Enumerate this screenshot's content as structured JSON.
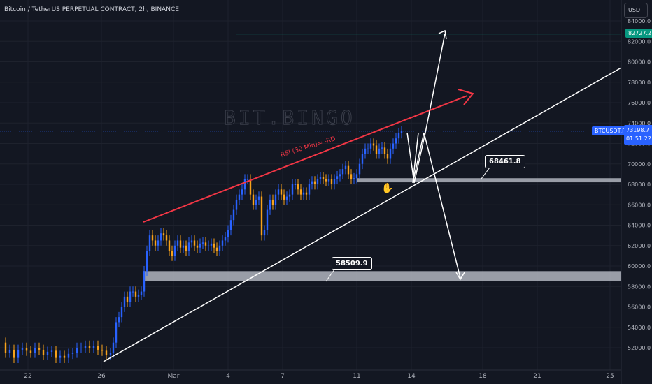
{
  "header": {
    "title": "Bitcoin / TetherUS PERPETUAL CONTRACT, 2h, BINANCE",
    "currency": "USDT"
  },
  "watermark": "BIT.BINGO",
  "annotations": {
    "rsi_label": "RSI (30 Min)= -RD",
    "hand_icon": "pointing-hand-icon"
  },
  "price_tags": {
    "green": "82727.2",
    "symbol": "BTCUSDT.P",
    "last": "73198.7",
    "countdown": "01:51:22"
  },
  "callouts": {
    "upper": "68461.8",
    "lower": "58509.9"
  },
  "colors": {
    "up": "#2962ff",
    "down": "#f7a21b",
    "trend_red": "#f23645",
    "support": "#b2b5be",
    "green_line": "#089981"
  },
  "chart_data": {
    "type": "candlestick",
    "title": "Bitcoin / TetherUS PERPETUAL CONTRACT, 2h, BINANCE",
    "ylim": [
      50000,
      85000
    ],
    "y_ticks": [
      "52000.0",
      "54000.0",
      "56000.0",
      "58000.0",
      "60000.0",
      "62000.0",
      "64000.0",
      "66000.0",
      "68000.0",
      "70000.0",
      "72000.0",
      "74000.0",
      "76000.0",
      "78000.0",
      "80000.0",
      "82000.0",
      "84000.0"
    ],
    "x_ticks": [
      "22",
      "26",
      "Mar",
      "4",
      "7",
      "11",
      "14",
      "18",
      "21",
      "25"
    ],
    "close_path": [
      [
        0,
        52500
      ],
      [
        6,
        51500
      ],
      [
        12,
        51800
      ],
      [
        18,
        51000
      ],
      [
        24,
        51800
      ],
      [
        30,
        52000
      ],
      [
        36,
        51700
      ],
      [
        42,
        51500
      ],
      [
        48,
        52000
      ],
      [
        54,
        51800
      ],
      [
        60,
        51300
      ],
      [
        66,
        51600
      ],
      [
        72,
        51700
      ],
      [
        78,
        51000
      ],
      [
        84,
        51200
      ],
      [
        90,
        51000
      ],
      [
        96,
        51400
      ],
      [
        102,
        51500
      ],
      [
        108,
        52000
      ],
      [
        114,
        52000
      ],
      [
        120,
        52200
      ],
      [
        126,
        52000
      ],
      [
        132,
        52200
      ],
      [
        138,
        51800
      ],
      [
        144,
        51700
      ],
      [
        150,
        51300
      ],
      [
        156,
        51500
      ],
      [
        160,
        52500
      ],
      [
        164,
        54500
      ],
      [
        168,
        55000
      ],
      [
        172,
        56000
      ],
      [
        176,
        57000
      ],
      [
        180,
        56500
      ],
      [
        184,
        57500
      ],
      [
        188,
        57500
      ],
      [
        192,
        57000
      ],
      [
        196,
        57200
      ],
      [
        200,
        57500
      ],
      [
        204,
        59500
      ],
      [
        208,
        61500
      ],
      [
        212,
        63000
      ],
      [
        216,
        62500
      ],
      [
        220,
        62000
      ],
      [
        224,
        62500
      ],
      [
        228,
        63200
      ],
      [
        232,
        63000
      ],
      [
        236,
        62500
      ],
      [
        240,
        61500
      ],
      [
        244,
        61000
      ],
      [
        248,
        62000
      ],
      [
        252,
        62500
      ],
      [
        256,
        61800
      ],
      [
        260,
        62000
      ],
      [
        264,
        61500
      ],
      [
        268,
        62300
      ],
      [
        272,
        62500
      ],
      [
        276,
        62000
      ],
      [
        280,
        61800
      ],
      [
        284,
        62200
      ],
      [
        288,
        62300
      ],
      [
        292,
        62000
      ],
      [
        296,
        62000
      ],
      [
        300,
        62200
      ],
      [
        304,
        61800
      ],
      [
        308,
        61500
      ],
      [
        312,
        62000
      ],
      [
        316,
        62500
      ],
      [
        320,
        62800
      ],
      [
        324,
        63500
      ],
      [
        328,
        64500
      ],
      [
        332,
        65500
      ],
      [
        336,
        66500
      ],
      [
        340,
        67000
      ],
      [
        344,
        67500
      ],
      [
        348,
        68500
      ],
      [
        352,
        68500
      ],
      [
        356,
        67000
      ],
      [
        360,
        66000
      ],
      [
        364,
        66500
      ],
      [
        368,
        66800
      ],
      [
        372,
        63000
      ],
      [
        376,
        63500
      ],
      [
        380,
        65500
      ],
      [
        384,
        66500
      ],
      [
        388,
        66000
      ],
      [
        392,
        67000
      ],
      [
        396,
        67500
      ],
      [
        400,
        67000
      ],
      [
        404,
        66500
      ],
      [
        408,
        66800
      ],
      [
        412,
        67000
      ],
      [
        416,
        68000
      ],
      [
        420,
        68000
      ],
      [
        424,
        67500
      ],
      [
        428,
        67000
      ],
      [
        432,
        67200
      ],
      [
        436,
        67000
      ],
      [
        440,
        68000
      ],
      [
        444,
        68300
      ],
      [
        448,
        68000
      ],
      [
        452,
        68500
      ],
      [
        456,
        68700
      ],
      [
        460,
        68500
      ],
      [
        464,
        68300
      ],
      [
        468,
        68500
      ],
      [
        472,
        68000
      ],
      [
        476,
        68500
      ],
      [
        480,
        68800
      ],
      [
        484,
        69000
      ],
      [
        488,
        69500
      ],
      [
        492,
        69800
      ],
      [
        496,
        69000
      ],
      [
        500,
        68500
      ],
      [
        504,
        68600
      ],
      [
        508,
        69000
      ],
      [
        512,
        70000
      ],
      [
        516,
        71000
      ],
      [
        520,
        71500
      ],
      [
        524,
        71500
      ],
      [
        528,
        72000
      ],
      [
        532,
        71800
      ],
      [
        536,
        71000
      ],
      [
        540,
        71500
      ],
      [
        544,
        71600
      ],
      [
        548,
        71000
      ],
      [
        552,
        70500
      ],
      [
        556,
        71500
      ],
      [
        560,
        72000
      ],
      [
        564,
        72500
      ],
      [
        568,
        73000
      ],
      [
        572,
        73198
      ]
    ]
  }
}
